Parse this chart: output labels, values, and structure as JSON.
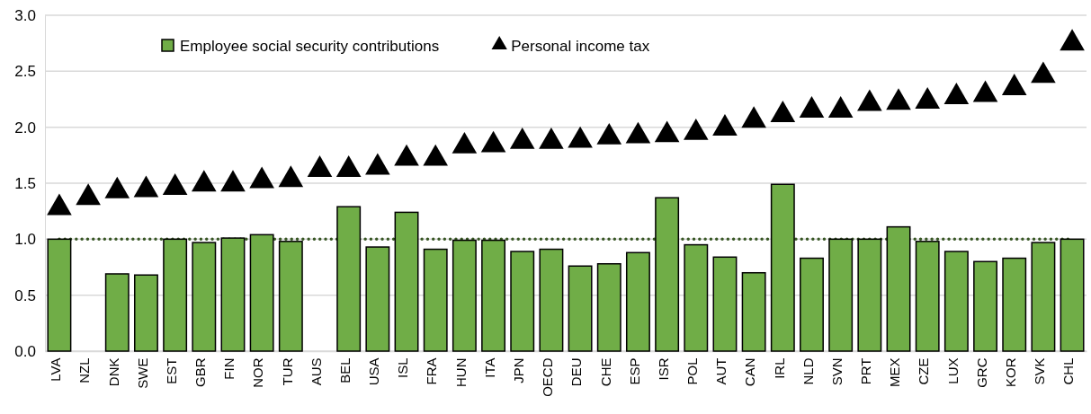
{
  "chart_data": {
    "type": "bar",
    "categories": [
      "LVA",
      "NZL",
      "DNK",
      "SWE",
      "EST",
      "GBR",
      "FIN",
      "NOR",
      "TUR",
      "AUS",
      "BEL",
      "USA",
      "ISL",
      "FRA",
      "HUN",
      "ITA",
      "JPN",
      "OECD",
      "DEU",
      "CHE",
      "ESP",
      "ISR",
      "POL",
      "AUT",
      "CAN",
      "IRL",
      "NLD",
      "SVN",
      "PRT",
      "MEX",
      "CZE",
      "LUX",
      "GRC",
      "KOR",
      "SVK",
      "CHL"
    ],
    "series": [
      {
        "name": "Employee social security contributions",
        "color": "#70ad47",
        "values": [
          1.0,
          null,
          0.69,
          0.68,
          1.0,
          0.97,
          1.01,
          1.04,
          0.98,
          null,
          1.29,
          0.93,
          1.24,
          0.91,
          0.99,
          0.99,
          0.89,
          0.91,
          0.76,
          0.78,
          0.88,
          1.37,
          0.95,
          0.84,
          0.7,
          1.49,
          0.83,
          1.0,
          1.0,
          1.11,
          0.98,
          0.89,
          0.8,
          0.83,
          0.97,
          1.0
        ]
      },
      {
        "name": "Personal income tax",
        "type": "scatter",
        "marker": "triangle",
        "color": "#000000",
        "values": [
          1.28,
          1.37,
          1.43,
          1.44,
          1.46,
          1.49,
          1.49,
          1.52,
          1.53,
          1.62,
          1.62,
          1.64,
          1.72,
          1.72,
          1.83,
          1.84,
          1.87,
          1.87,
          1.88,
          1.91,
          1.92,
          1.93,
          1.95,
          1.99,
          2.06,
          2.11,
          2.15,
          2.15,
          2.21,
          2.22,
          2.23,
          2.27,
          2.29,
          2.35,
          2.46,
          2.75
        ]
      }
    ],
    "ylim": [
      0,
      3
    ],
    "yticks": [
      {
        "value": 0,
        "label": "0.0"
      },
      {
        "value": 0.5,
        "label": "0.5"
      },
      {
        "value": 1,
        "label": "1.0"
      },
      {
        "value": 1.5,
        "label": "1.5"
      },
      {
        "value": 2,
        "label": "2.0"
      },
      {
        "value": 2.5,
        "label": "2.5"
      },
      {
        "value": 3,
        "label": "3.0"
      }
    ],
    "grid": "y",
    "legend": "top left",
    "ref_lines": [
      {
        "axis": "y",
        "value": 1,
        "color": "#375623",
        "line_style": "dotted"
      }
    ]
  }
}
